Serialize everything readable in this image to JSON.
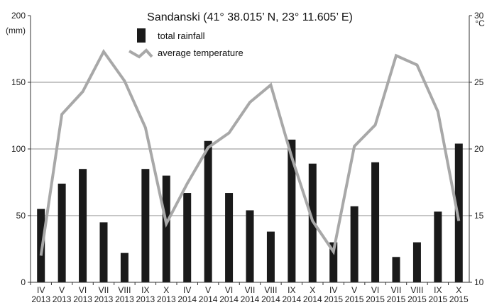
{
  "chart_data": {
    "type": "bar+line",
    "title": "Sandanski (41° 38.015’ N, 23° 11.605’ E)",
    "categories": [
      [
        "IV",
        "2013"
      ],
      [
        "V",
        "2013"
      ],
      [
        "VI",
        "2013"
      ],
      [
        "VII",
        "2013"
      ],
      [
        "VIII",
        "2013"
      ],
      [
        "IX",
        "2013"
      ],
      [
        "X",
        "2013"
      ],
      [
        "IV",
        "2014"
      ],
      [
        "V",
        "2014"
      ],
      [
        "VI",
        "2014"
      ],
      [
        "VII",
        "2014"
      ],
      [
        "VIII",
        "2014"
      ],
      [
        "IX",
        "2014"
      ],
      [
        "X",
        "2014"
      ],
      [
        "IV",
        "2015"
      ],
      [
        "V",
        "2015"
      ],
      [
        "VI",
        "2015"
      ],
      [
        "VII",
        "2015"
      ],
      [
        "VIII",
        "2015"
      ],
      [
        "IX",
        "2015"
      ],
      [
        "X",
        "2015"
      ]
    ],
    "series": [
      {
        "name": "total rainfall",
        "kind": "bar",
        "axis": "left",
        "color": "#1a1a1a",
        "values": [
          55,
          74,
          85,
          45,
          22,
          85,
          80,
          67,
          106,
          67,
          54,
          38,
          107,
          89,
          30,
          57,
          90,
          19,
          30,
          53,
          104
        ]
      },
      {
        "name": "average temperature",
        "kind": "line",
        "axis": "right",
        "color": "#a8a8a8",
        "values": [
          12.0,
          22.6,
          24.3,
          27.3,
          25.1,
          21.6,
          14.4,
          17.4,
          20.1,
          21.2,
          23.5,
          24.8,
          19.4,
          14.6,
          12.3,
          20.2,
          21.8,
          27.0,
          26.3,
          22.8,
          14.6
        ]
      }
    ],
    "y_left": {
      "unit": "(mm)",
      "ylim": [
        0,
        200
      ],
      "ticks": [
        0,
        50,
        100,
        150,
        200
      ]
    },
    "y_right": {
      "unit": "°C",
      "ylim": [
        10,
        30
      ],
      "ticks": [
        10,
        15,
        20,
        25,
        30
      ]
    },
    "grid": "horizontal",
    "legend": {
      "position": "top-center",
      "entries": [
        "total rainfall",
        "average temperature"
      ]
    }
  }
}
